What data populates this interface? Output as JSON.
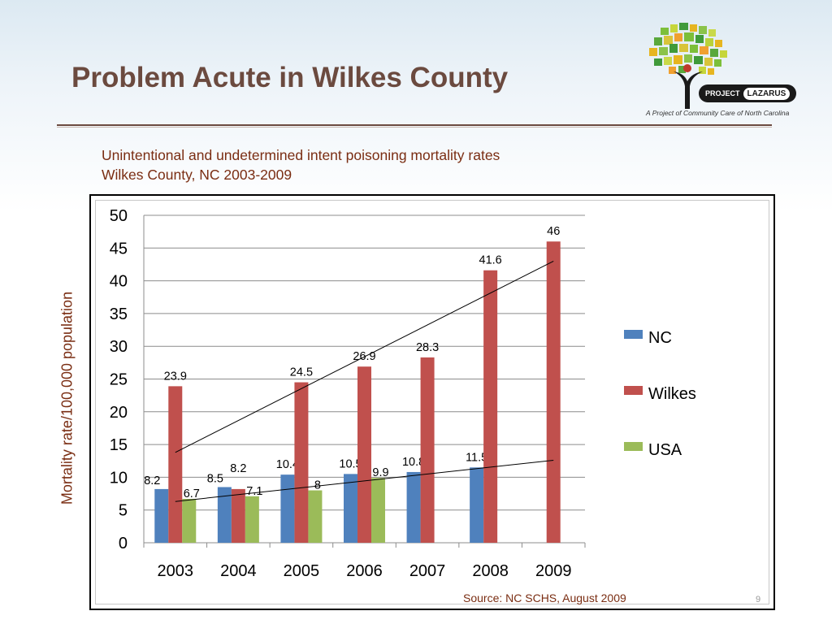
{
  "slide": {
    "title": "Problem Acute in Wilkes County",
    "subtitle_line1": "Unintentional and undetermined intent poisoning mortality rates",
    "subtitle_line2": "Wilkes County, NC 2003-2009",
    "source": "Source: NC SCHS, August 2009",
    "page_number": "9"
  },
  "logo": {
    "badge_prefix": "PROJECT",
    "badge_name": "LAZARUS",
    "caption": "A Project of Community Care of North Carolina"
  },
  "chart_data": {
    "type": "bar",
    "ylabel": "Mortality rate/100,000 population",
    "xlabel": "",
    "categories": [
      "2003",
      "2004",
      "2005",
      "2006",
      "2007",
      "2008",
      "2009"
    ],
    "ylim": [
      0,
      50
    ],
    "yticks": [
      0,
      5,
      10,
      15,
      20,
      25,
      30,
      35,
      40,
      45,
      50
    ],
    "grid": true,
    "legend_position": "right",
    "series": [
      {
        "name": "NC",
        "color": "#4f81bd",
        "values": [
          8.2,
          8.5,
          10.4,
          10.5,
          10.8,
          11.5,
          null
        ]
      },
      {
        "name": "Wilkes",
        "color": "#c0504d",
        "values": [
          23.9,
          8.2,
          24.5,
          26.9,
          28.3,
          41.6,
          46
        ]
      },
      {
        "name": "USA",
        "color": "#9bbb59",
        "values": [
          6.7,
          7.1,
          8,
          9.9,
          null,
          null,
          null
        ]
      }
    ],
    "trendlines": [
      {
        "series": "Wilkes",
        "from": [
          2003,
          13.8
        ],
        "to": [
          2009,
          43.0
        ]
      },
      {
        "series": "NC",
        "from": [
          2003,
          6.3
        ],
        "to": [
          2009,
          12.6
        ]
      }
    ]
  }
}
